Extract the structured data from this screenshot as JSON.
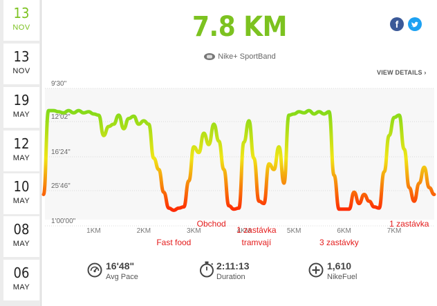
{
  "sidebar": {
    "dates": [
      {
        "day": "13",
        "month": "NOV",
        "active": true
      },
      {
        "day": "13",
        "month": "NOV",
        "active": false
      },
      {
        "day": "19",
        "month": "MAY",
        "active": false
      },
      {
        "day": "12",
        "month": "MAY",
        "active": false
      },
      {
        "day": "10",
        "month": "MAY",
        "active": false
      },
      {
        "day": "08",
        "month": "MAY",
        "active": false
      },
      {
        "day": "06",
        "month": "MAY",
        "active": false
      }
    ]
  },
  "header": {
    "distance": "7.8 KM",
    "device": "Nike+ SportBand",
    "view_details": "VIEW DETAILS ›",
    "facebook_glyph": "f"
  },
  "chart_data": {
    "type": "line",
    "y_ticks": [
      "9'30\"",
      "12'02\"",
      "16'24\"",
      "25'46\"",
      "1'00'00\""
    ],
    "x_ticks": [
      "1KM",
      "2KM",
      "3KM",
      "4KM",
      "5KM",
      "6KM",
      "7KM"
    ],
    "x_range": [
      0,
      7.8
    ],
    "x_km": [
      0.0,
      0.1,
      0.2,
      0.3,
      0.4,
      0.5,
      0.6,
      0.7,
      0.8,
      0.9,
      1.0,
      1.1,
      1.2,
      1.3,
      1.4,
      1.5,
      1.6,
      1.7,
      1.8,
      1.9,
      2.0,
      2.1,
      2.2,
      2.3,
      2.4,
      2.5,
      2.6,
      2.7,
      2.8,
      2.9,
      3.0,
      3.1,
      3.2,
      3.3,
      3.4,
      3.5,
      3.6,
      3.7,
      3.8,
      3.9,
      4.0,
      4.1,
      4.2,
      4.3,
      4.4,
      4.5,
      4.6,
      4.7,
      4.8,
      4.9,
      5.0,
      5.1,
      5.2,
      5.3,
      5.4,
      5.5,
      5.6,
      5.7,
      5.8,
      5.9,
      6.0,
      6.1,
      6.2,
      6.3,
      6.4,
      6.5,
      6.6,
      6.7,
      6.8,
      6.9,
      7.0,
      7.1,
      7.2,
      7.3,
      7.4,
      7.5,
      7.6,
      7.7,
      7.8
    ],
    "pace_level": [
      0.18,
      0.92,
      0.92,
      0.91,
      0.9,
      0.92,
      0.9,
      0.92,
      0.9,
      0.91,
      0.89,
      0.88,
      0.7,
      0.78,
      0.8,
      0.88,
      0.76,
      0.85,
      0.87,
      0.8,
      0.83,
      0.8,
      0.5,
      0.4,
      0.2,
      0.06,
      0.04,
      0.06,
      0.07,
      0.3,
      0.6,
      0.55,
      0.72,
      0.62,
      0.8,
      0.65,
      0.4,
      0.08,
      0.05,
      0.06,
      0.64,
      0.83,
      0.5,
      0.12,
      0.1,
      0.45,
      0.4,
      0.6,
      0.28,
      0.88,
      0.89,
      0.91,
      0.9,
      0.92,
      0.89,
      0.91,
      0.89,
      0.91,
      0.35,
      0.05,
      0.05,
      0.05,
      0.2,
      0.1,
      0.18,
      0.12,
      0.07,
      0.06,
      0.38,
      0.7,
      0.86,
      0.88,
      0.58,
      0.24,
      0.12,
      0.28,
      0.42,
      0.24,
      0.18
    ],
    "annotations": [
      {
        "text": "Fast food",
        "x_km": 2.6,
        "row": 2
      },
      {
        "text": "Obchod",
        "x_km": 3.35,
        "row": 0
      },
      {
        "text": "1 zastávka",
        "x_km": 4.25,
        "row": 1
      },
      {
        "text": "tramvají",
        "x_km": 4.25,
        "row": 2
      },
      {
        "text": "3 zastávky",
        "x_km": 5.9,
        "row": 2
      },
      {
        "text": "1 zastávka",
        "x_km": 7.3,
        "row": 0
      }
    ]
  },
  "stats": [
    {
      "icon": "speedometer-icon",
      "value": "16'48\"",
      "label": "Avg Pace"
    },
    {
      "icon": "stopwatch-icon",
      "value": "2:11:13",
      "label": "Duration"
    },
    {
      "icon": "nikefuel-plus-icon",
      "value": "1,610",
      "label": "NikeFuel"
    }
  ],
  "colors": {
    "accent_green": "#7cc220",
    "annotation_red": "#e41a1a",
    "pace_fast": "#6ed81a",
    "pace_mid": "#f0e516",
    "pace_slow": "#ff1a00"
  }
}
